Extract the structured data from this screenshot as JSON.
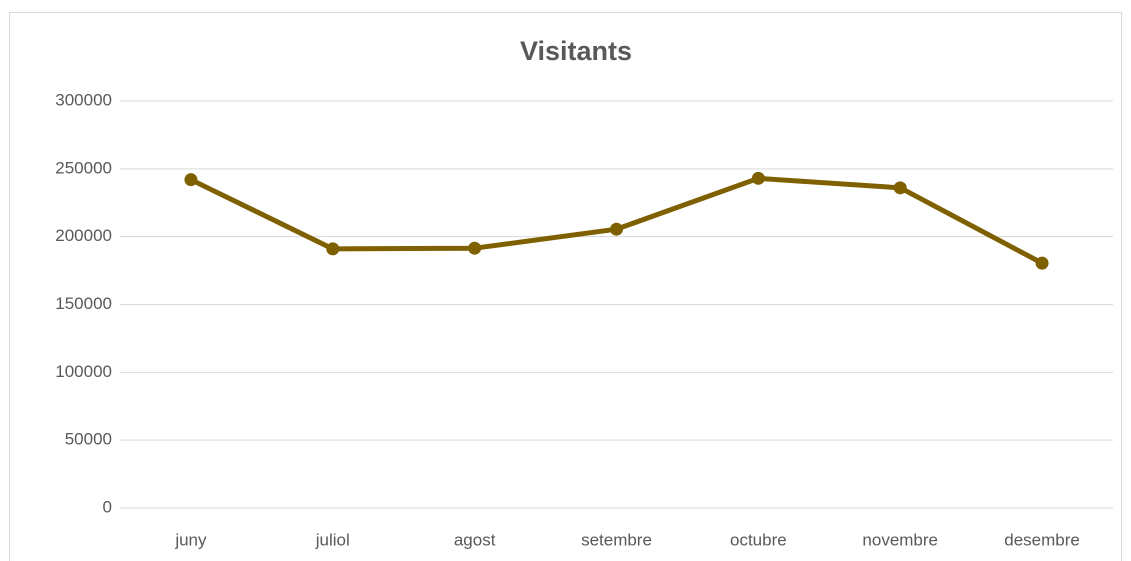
{
  "chart_data": {
    "type": "line",
    "title": "Visitants",
    "categories": [
      "juny",
      "juliol",
      "agost",
      "setembre",
      "octubre",
      "novembre",
      "desembre"
    ],
    "series": [
      {
        "name": "Visitants",
        "color": "#7f6000",
        "values": [
          242000,
          191000,
          191500,
          205500,
          243000,
          236000,
          180500
        ]
      }
    ],
    "ylim": [
      0,
      300000
    ],
    "yticks": [
      0,
      50000,
      100000,
      150000,
      200000,
      250000,
      300000
    ],
    "grid": true
  }
}
